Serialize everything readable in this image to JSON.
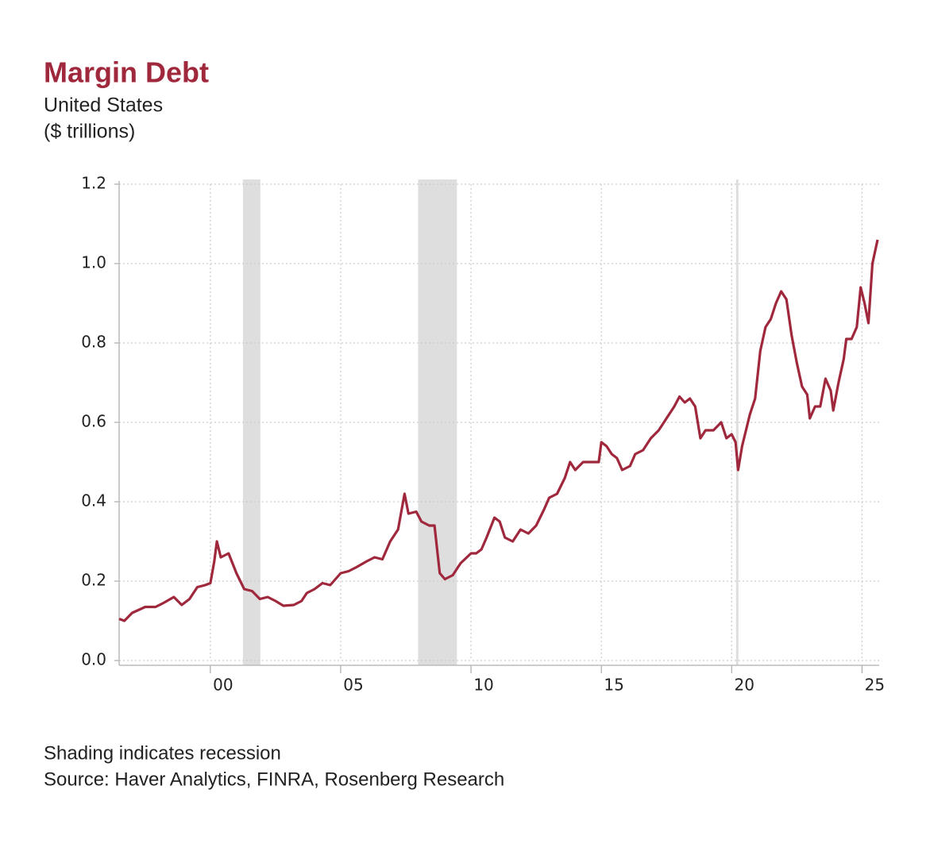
{
  "chart_data": {
    "type": "line",
    "title": "Margin Debt",
    "subtitle": [
      "United States",
      "($ trillions)"
    ],
    "notes": [
      "Shading indicates recession",
      "Source: Haver Analytics, FINRA, Rosenberg Research"
    ],
    "xlim": [
      1996.5,
      2025.66
    ],
    "ylim": [
      0,
      1.2
    ],
    "xticks": [
      {
        "value": 2000,
        "label": "00"
      },
      {
        "value": 2005,
        "label": "05"
      },
      {
        "value": 2010,
        "label": "10"
      },
      {
        "value": 2015,
        "label": "15"
      },
      {
        "value": 2020,
        "label": "20"
      },
      {
        "value": 2025,
        "label": "25"
      }
    ],
    "yticks": [
      {
        "value": 0,
        "label": "0.0"
      },
      {
        "value": 0.2,
        "label": "0.2"
      },
      {
        "value": 0.4,
        "label": "0.4"
      },
      {
        "value": 0.6,
        "label": "0.6"
      },
      {
        "value": 0.8,
        "label": "0.8"
      },
      {
        "value": 1,
        "label": "1.0"
      },
      {
        "value": 1.2,
        "label": "1.2"
      }
    ],
    "grid": true,
    "recession_color": "#dedede",
    "recessions": [
      [
        2001.25,
        2001.92
      ],
      [
        2007.97,
        2009.46
      ],
      [
        2020.17,
        2020.25
      ]
    ],
    "series": [
      {
        "color": "#a0283c",
        "x": [
          1996.5,
          1996.7,
          1997.0,
          1997.5,
          1997.9,
          1998.2,
          1998.6,
          1998.9,
          1999.2,
          1999.5,
          1999.8,
          2000.0,
          2000.15,
          2000.25,
          2000.4,
          2000.7,
          2001.0,
          2001.3,
          2001.6,
          2001.9,
          2002.2,
          2002.5,
          2002.8,
          2003.2,
          2003.5,
          2003.7,
          2004.0,
          2004.3,
          2004.6,
          2005.0,
          2005.3,
          2005.6,
          2006.0,
          2006.3,
          2006.6,
          2006.9,
          2007.2,
          2007.45,
          2007.6,
          2007.9,
          2008.1,
          2008.4,
          2008.6,
          2008.8,
          2009.0,
          2009.3,
          2009.6,
          2010.0,
          2010.2,
          2010.4,
          2010.6,
          2010.9,
          2011.1,
          2011.3,
          2011.6,
          2011.9,
          2012.2,
          2012.5,
          2012.8,
          2013.0,
          2013.3,
          2013.6,
          2013.8,
          2014.0,
          2014.3,
          2014.6,
          2014.9,
          2015.0,
          2015.2,
          2015.4,
          2015.6,
          2015.8,
          2016.1,
          2016.3,
          2016.6,
          2016.9,
          2017.2,
          2017.5,
          2017.8,
          2018.0,
          2018.2,
          2018.4,
          2018.6,
          2018.8,
          2019.0,
          2019.3,
          2019.6,
          2019.8,
          2020.0,
          2020.15,
          2020.25,
          2020.4,
          2020.7,
          2020.9,
          2021.1,
          2021.3,
          2021.5,
          2021.7,
          2021.9,
          2022.1,
          2022.3,
          2022.5,
          2022.7,
          2022.9,
          2023.0,
          2023.2,
          2023.4,
          2023.6,
          2023.8,
          2023.9,
          2024.1,
          2024.3,
          2024.4,
          2024.6,
          2024.8,
          2024.95,
          2025.1,
          2025.25,
          2025.4,
          2025.6
        ],
        "values": [
          0.105,
          0.1,
          0.12,
          0.135,
          0.135,
          0.145,
          0.16,
          0.14,
          0.155,
          0.185,
          0.19,
          0.195,
          0.25,
          0.3,
          0.26,
          0.27,
          0.22,
          0.18,
          0.175,
          0.155,
          0.16,
          0.15,
          0.138,
          0.14,
          0.15,
          0.17,
          0.18,
          0.195,
          0.19,
          0.22,
          0.225,
          0.235,
          0.25,
          0.26,
          0.255,
          0.3,
          0.33,
          0.42,
          0.37,
          0.375,
          0.35,
          0.34,
          0.34,
          0.22,
          0.205,
          0.215,
          0.245,
          0.27,
          0.27,
          0.28,
          0.31,
          0.36,
          0.35,
          0.31,
          0.3,
          0.33,
          0.32,
          0.34,
          0.38,
          0.41,
          0.42,
          0.46,
          0.5,
          0.48,
          0.5,
          0.5,
          0.5,
          0.55,
          0.54,
          0.52,
          0.51,
          0.48,
          0.49,
          0.52,
          0.53,
          0.56,
          0.58,
          0.61,
          0.64,
          0.665,
          0.65,
          0.66,
          0.64,
          0.56,
          0.58,
          0.58,
          0.6,
          0.56,
          0.57,
          0.55,
          0.48,
          0.54,
          0.62,
          0.66,
          0.78,
          0.84,
          0.86,
          0.9,
          0.93,
          0.91,
          0.82,
          0.75,
          0.69,
          0.67,
          0.61,
          0.64,
          0.64,
          0.71,
          0.68,
          0.63,
          0.7,
          0.76,
          0.81,
          0.81,
          0.84,
          0.94,
          0.9,
          0.85,
          1.0,
          1.06
        ]
      }
    ]
  }
}
